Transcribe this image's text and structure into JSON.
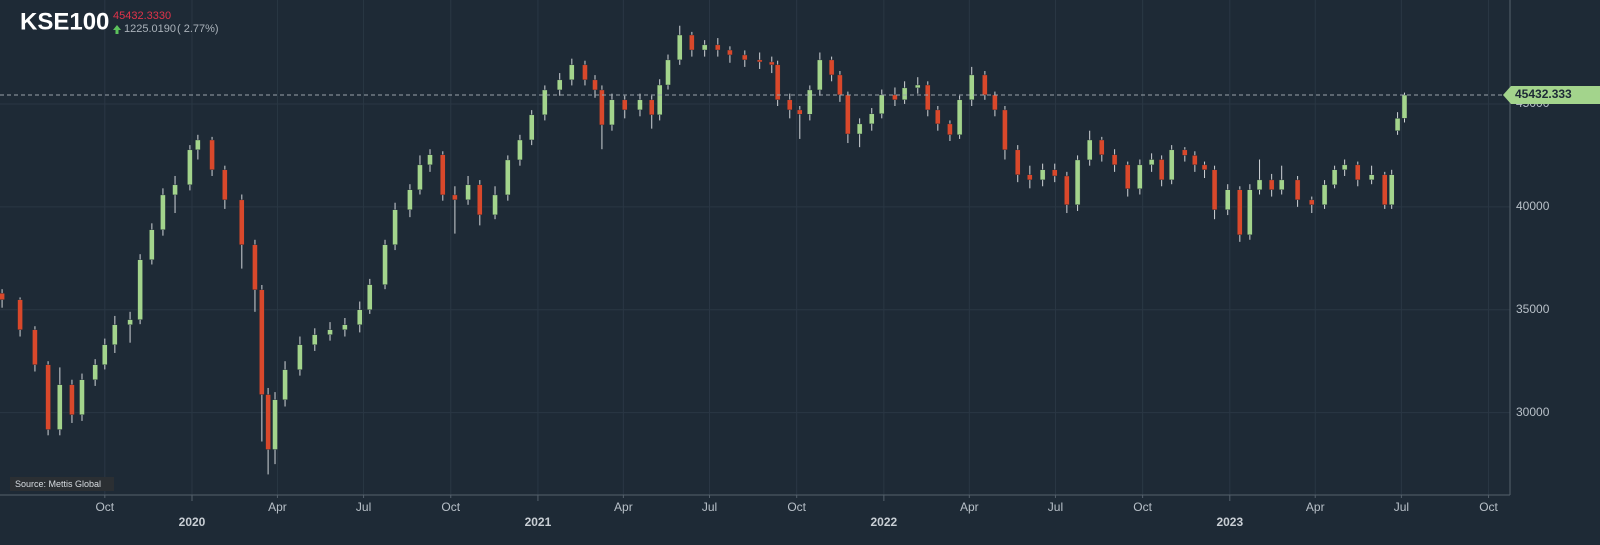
{
  "chart_data": {
    "type": "candlestick",
    "title": "KSE100",
    "header_price": "45432.3330",
    "change": "1225.0190",
    "change_pct": "( 2.77%)",
    "price_line": {
      "value": 45432.333,
      "label": "45432.333"
    },
    "source": "Source: Mettis Global",
    "up_color": "#a3d48c",
    "down_color": "#d9482b",
    "grid": true,
    "xlim": [
      2019.445,
      2023.81
    ],
    "ylim": [
      26000,
      50050
    ],
    "yticks": [
      30000,
      35000,
      40000,
      45000
    ],
    "xticks": [
      {
        "value": 2019.748,
        "label": "Oct"
      },
      {
        "value": 2020,
        "label": "2020"
      },
      {
        "value": 2020.247,
        "label": "Apr"
      },
      {
        "value": 2020.496,
        "label": "Jul"
      },
      {
        "value": 2020.748,
        "label": "Oct"
      },
      {
        "value": 2021,
        "label": "2021"
      },
      {
        "value": 2021.247,
        "label": "Apr"
      },
      {
        "value": 2021.496,
        "label": "Jul"
      },
      {
        "value": 2021.748,
        "label": "Oct"
      },
      {
        "value": 2022,
        "label": "2022"
      },
      {
        "value": 2022.247,
        "label": "Apr"
      },
      {
        "value": 2022.496,
        "label": "Jul"
      },
      {
        "value": 2022.748,
        "label": "Oct"
      },
      {
        "value": 2023,
        "label": "2023"
      },
      {
        "value": 2023.247,
        "label": "Apr"
      },
      {
        "value": 2023.496,
        "label": "Jul"
      },
      {
        "value": 2023.748,
        "label": "Oct"
      }
    ],
    "x": [
      2019.451,
      2019.503,
      2019.546,
      2019.584,
      2019.618,
      2019.653,
      2019.682,
      2019.72,
      2019.748,
      2019.777,
      2019.821,
      2019.85,
      2019.884,
      2019.916,
      2019.951,
      2019.994,
      2020.017,
      2020.058,
      2020.095,
      2020.144,
      2020.182,
      2020.202,
      2020.22,
      2020.24,
      2020.269,
      2020.312,
      2020.355,
      2020.399,
      2020.442,
      2020.485,
      2020.514,
      2020.558,
      2020.587,
      2020.63,
      2020.659,
      2020.688,
      2020.725,
      2020.76,
      2020.798,
      2020.832,
      2020.876,
      2020.913,
      2020.948,
      2020.982,
      2021.02,
      2021.063,
      2021.098,
      2021.136,
      2021.165,
      2021.185,
      2021.214,
      2021.251,
      2021.295,
      2021.329,
      2021.352,
      2021.376,
      2021.41,
      2021.445,
      2021.482,
      2021.52,
      2021.555,
      2021.598,
      2021.641,
      2021.676,
      2021.693,
      2021.728,
      2021.757,
      2021.786,
      2021.815,
      2021.849,
      2021.873,
      2021.896,
      2021.93,
      2021.965,
      2021.994,
      2022.032,
      2022.06,
      2022.098,
      2022.127,
      2022.156,
      2022.191,
      2022.219,
      2022.254,
      2022.292,
      2022.321,
      2022.35,
      2022.387,
      2022.422,
      2022.459,
      2022.494,
      2022.529,
      2022.56,
      2022.595,
      2022.63,
      2022.667,
      2022.705,
      2022.74,
      2022.774,
      2022.803,
      2022.832,
      2022.87,
      2022.899,
      2022.927,
      2022.956,
      2022.994,
      2023.029,
      2023.058,
      2023.086,
      2023.121,
      2023.15,
      2023.196,
      2023.237,
      2023.274,
      2023.303,
      2023.332,
      2023.37,
      2023.41,
      2023.448,
      2023.468,
      2023.485,
      2023.505
    ],
    "open": [
      35800,
      35490,
      34030,
      32330,
      29180,
      31360,
      29900,
      31600,
      32330,
      33300,
      34270,
      34520,
      37430,
      38890,
      40580,
      41070,
      42770,
      43250,
      41800,
      40340,
      38160,
      35970,
      30880,
      28210,
      30630,
      32090,
      33300,
      33790,
      34030,
      34270,
      35000,
      36220,
      38160,
      39860,
      40830,
      42040,
      42530,
      40580,
      40340,
      41070,
      39610,
      40580,
      42280,
      43250,
      44470,
      45680,
      46170,
      46900,
      46170,
      45680,
      43980,
      45200,
      44710,
      45200,
      44470,
      45920,
      47140,
      48350,
      47620,
      47870,
      47620,
      47380,
      47140,
      47040,
      46900,
      45200,
      44710,
      44500,
      45680,
      47140,
      46410,
      45440,
      43540,
      44030,
      44520,
      45440,
      45200,
      45780,
      45920,
      44710,
      44030,
      43500,
      45200,
      46410,
      45440,
      44710,
      42770,
      41560,
      41310,
      41800,
      41500,
      40100,
      42280,
      43250,
      42530,
      42040,
      40880,
      42040,
      42300,
      41310,
      42770,
      42500,
      42040,
      41800,
      39860,
      40830,
      38640,
      40830,
      41310,
      40830,
      41310,
      40340,
      40100,
      41070,
      41800,
      42040,
      41310,
      41560,
      40100,
      43700,
      44300
    ],
    "high": [
      36000,
      35600,
      34200,
      32500,
      32200,
      31600,
      31900,
      32600,
      33600,
      34700,
      34900,
      37700,
      39200,
      40900,
      41500,
      43000,
      43500,
      43400,
      42000,
      40600,
      38400,
      36200,
      31200,
      31000,
      32500,
      33700,
      34100,
      34400,
      34600,
      35400,
      36500,
      38400,
      40200,
      41100,
      42500,
      42800,
      42700,
      41000,
      41500,
      41300,
      41000,
      42500,
      43500,
      44700,
      45900,
      46500,
      47200,
      47100,
      46400,
      45900,
      45500,
      45400,
      45500,
      45400,
      46200,
      47400,
      48800,
      48500,
      48100,
      48200,
      47800,
      47600,
      47500,
      47300,
      47100,
      45500,
      44900,
      45900,
      47500,
      47300,
      46600,
      45600,
      44300,
      44800,
      45700,
      45800,
      46100,
      46300,
      46100,
      44900,
      44200,
      45400,
      46800,
      46600,
      45600,
      44900,
      43000,
      42000,
      42100,
      42100,
      41700,
      42500,
      43700,
      43400,
      42800,
      42200,
      42300,
      42600,
      42500,
      43000,
      42900,
      42700,
      42200,
      42000,
      41100,
      41000,
      41100,
      42300,
      41600,
      42000,
      41500,
      40500,
      41300,
      42000,
      42300,
      42200,
      42000,
      41700,
      41800,
      44600,
      45550
    ],
    "low": [
      35100,
      33700,
      32000,
      28900,
      28900,
      29500,
      29600,
      31300,
      32100,
      32900,
      33400,
      34300,
      37200,
      38600,
      39700,
      40800,
      42300,
      41500,
      39900,
      37000,
      34900,
      28600,
      27000,
      27500,
      30300,
      31800,
      33000,
      33500,
      33700,
      33900,
      34800,
      36000,
      37900,
      39500,
      40600,
      41700,
      40300,
      38700,
      40100,
      39100,
      39400,
      40300,
      42000,
      43000,
      44200,
      45400,
      45900,
      45900,
      45300,
      42800,
      43700,
      44300,
      44400,
      43800,
      44200,
      45700,
      46900,
      47300,
      47300,
      47300,
      47000,
      46800,
      46700,
      46500,
      44900,
      44300,
      43300,
      44200,
      45400,
      46100,
      45100,
      43100,
      42900,
      43700,
      44300,
      44900,
      45000,
      45500,
      44400,
      43700,
      43200,
      43300,
      44900,
      45200,
      44400,
      42300,
      41200,
      40900,
      41000,
      41200,
      39700,
      39800,
      42000,
      42200,
      41700,
      40500,
      40600,
      41700,
      41000,
      41100,
      42200,
      41700,
      41400,
      39400,
      39600,
      38300,
      38400,
      40600,
      40500,
      40600,
      40000,
      39700,
      39900,
      40900,
      41500,
      41000,
      41100,
      39900,
      39900,
      43500,
      44100
    ],
    "close": [
      35490,
      34030,
      32330,
      29180,
      31360,
      29900,
      31600,
      32330,
      33300,
      34270,
      34520,
      37430,
      38890,
      40580,
      41070,
      42770,
      43250,
      41800,
      40340,
      38160,
      35970,
      30880,
      28210,
      30630,
      32090,
      33300,
      33790,
      34030,
      34270,
      35000,
      36220,
      38160,
      39860,
      40830,
      42040,
      42530,
      40580,
      40340,
      41070,
      39610,
      40580,
      42280,
      43250,
      44470,
      45680,
      46170,
      46900,
      46170,
      45680,
      43980,
      45200,
      44710,
      45200,
      44470,
      45920,
      47140,
      48350,
      47620,
      47870,
      47620,
      47380,
      47140,
      47040,
      46900,
      45200,
      44710,
      44500,
      45680,
      47140,
      46410,
      45440,
      43540,
      44030,
      44520,
      45440,
      45200,
      45780,
      45920,
      44710,
      44030,
      43500,
      45200,
      46410,
      45440,
      44710,
      42770,
      41560,
      41310,
      41800,
      41500,
      40100,
      42280,
      43250,
      42530,
      42040,
      40880,
      42040,
      42300,
      41310,
      42770,
      42500,
      42040,
      41800,
      39860,
      40830,
      38640,
      40830,
      41310,
      40830,
      41310,
      40340,
      40100,
      41070,
      41800,
      42040,
      41310,
      41560,
      40100,
      41560,
      44300,
      45432.333
    ]
  }
}
